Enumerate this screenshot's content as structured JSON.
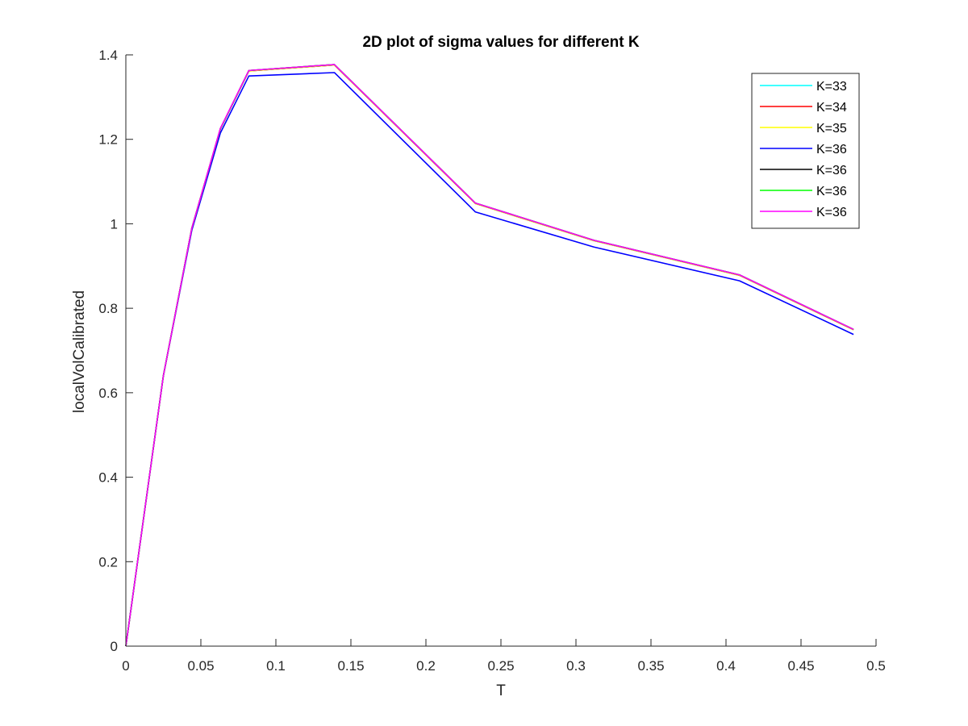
{
  "chart_data": {
    "type": "line",
    "title": "2D plot of sigma values for different K",
    "xlabel": "T",
    "ylabel": "localVolCalibrated",
    "xlim": [
      0,
      0.5
    ],
    "ylim": [
      0,
      1.4
    ],
    "xticks": [
      "0",
      "0.05",
      "0.1",
      "0.15",
      "0.2",
      "0.25",
      "0.3",
      "0.35",
      "0.4",
      "0.45",
      "0.5"
    ],
    "yticks": [
      "0",
      "0.2",
      "0.4",
      "0.6",
      "0.8",
      "1",
      "1.2",
      "1.4"
    ],
    "grid": false,
    "legend_position": "top-right",
    "x": [
      0,
      0.025,
      0.044,
      0.063,
      0.082,
      0.139,
      0.233,
      0.312,
      0.409,
      0.485
    ],
    "series": [
      {
        "name": "K=33",
        "color": "#00ffff",
        "values": [
          0,
          0.64,
          0.99,
          1.225,
          1.362,
          1.376,
          1.048,
          0.96,
          0.878,
          0.749
        ]
      },
      {
        "name": "K=34",
        "color": "#ff0000",
        "values": [
          0,
          0.64,
          0.99,
          1.225,
          1.362,
          1.376,
          1.048,
          0.96,
          0.878,
          0.749
        ]
      },
      {
        "name": "K=35",
        "color": "#ffff00",
        "values": [
          0,
          0.64,
          0.99,
          1.225,
          1.362,
          1.376,
          1.048,
          0.96,
          0.878,
          0.749
        ]
      },
      {
        "name": "K=36",
        "color": "#0000ff",
        "values": [
          0,
          0.64,
          0.985,
          1.215,
          1.35,
          1.358,
          1.028,
          0.945,
          0.865,
          0.738
        ]
      },
      {
        "name": "K=36",
        "color": "#000000",
        "values": [
          0,
          0.64,
          0.99,
          1.225,
          1.363,
          1.377,
          1.049,
          0.961,
          0.879,
          0.75
        ]
      },
      {
        "name": "K=36",
        "color": "#00ff00",
        "values": [
          0,
          0.64,
          0.99,
          1.225,
          1.363,
          1.377,
          1.049,
          0.961,
          0.879,
          0.75
        ]
      },
      {
        "name": "K=36",
        "color": "#ff00ff",
        "values": [
          0,
          0.64,
          0.99,
          1.226,
          1.363,
          1.377,
          1.049,
          0.961,
          0.879,
          0.75
        ]
      }
    ]
  }
}
